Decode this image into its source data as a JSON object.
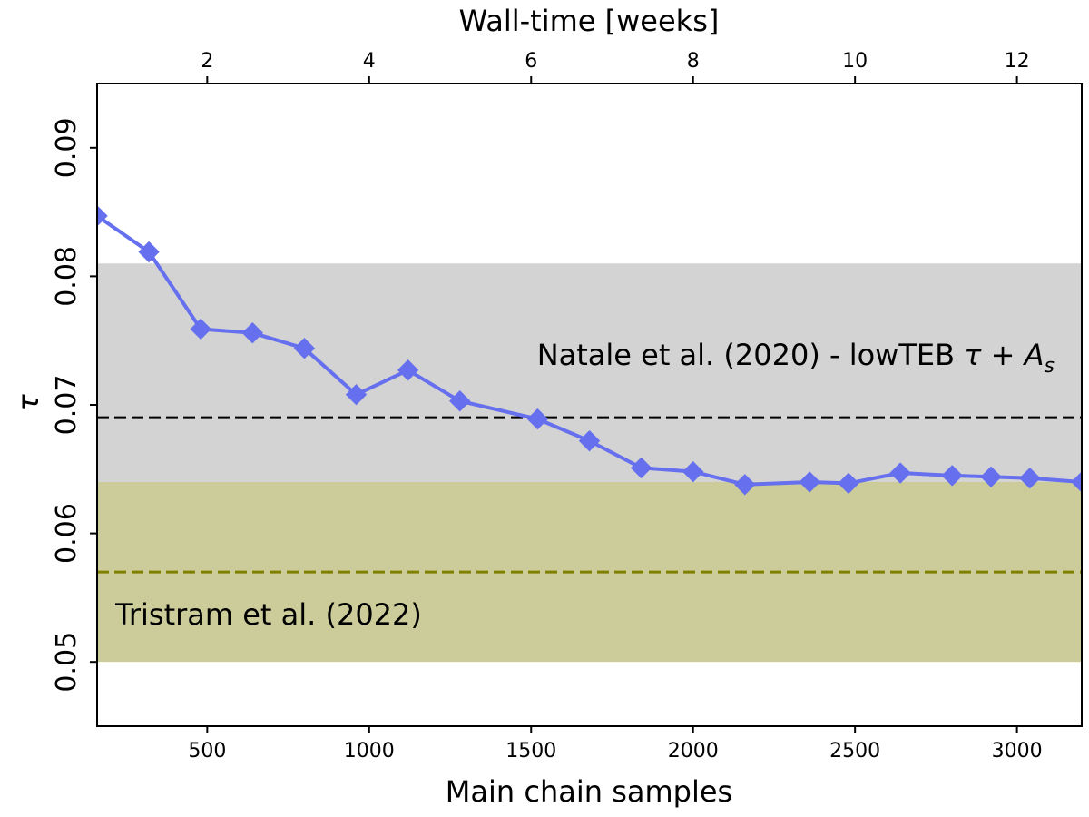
{
  "chart_data": {
    "type": "line",
    "xlabel": "Main chain samples",
    "ylabel": "τ",
    "top_xlabel": "Wall-time [weeks]",
    "xlim": [
      160,
      3200
    ],
    "ylim": [
      0.045,
      0.095
    ],
    "top_xlim": [
      0.64,
      12.8
    ],
    "x_ticks": [
      500,
      1000,
      1500,
      2000,
      2500,
      3000
    ],
    "y_ticks": [
      0.05,
      0.06,
      0.07,
      0.08,
      0.09
    ],
    "top_ticks": [
      2,
      4,
      6,
      8,
      10,
      12
    ],
    "grid": false,
    "series": [
      {
        "marker": "diamond",
        "color": "#6670ee",
        "x": [
          160,
          320,
          480,
          640,
          800,
          960,
          1120,
          1280,
          1520,
          1680,
          1840,
          2000,
          2160,
          2360,
          2480,
          2640,
          2800,
          2920,
          3040,
          3200
        ],
        "y": [
          0.0847,
          0.0819,
          0.0759,
          0.0756,
          0.0744,
          0.0708,
          0.0727,
          0.0703,
          0.0689,
          0.0672,
          0.0651,
          0.0648,
          0.0638,
          0.064,
          0.0639,
          0.0647,
          0.0645,
          0.0644,
          0.0643,
          0.064
        ]
      }
    ],
    "bands": [
      {
        "name": "Natale et al. (2020) - lowTEB",
        "ymin": 0.064,
        "ymax": 0.081,
        "center": 0.069,
        "fill": "#d3d3d3",
        "line_color": "#000000",
        "label": "Natale et al. (2020) - lowTEB"
      },
      {
        "name": "Tristram et al. (2022)",
        "ymin": 0.05,
        "ymax": 0.064,
        "center": 0.057,
        "fill": "#cccc9a",
        "line_color": "#7f7f00",
        "label": "Tristram et al. (2022)"
      }
    ],
    "overlap_fill": "#b3b283"
  }
}
